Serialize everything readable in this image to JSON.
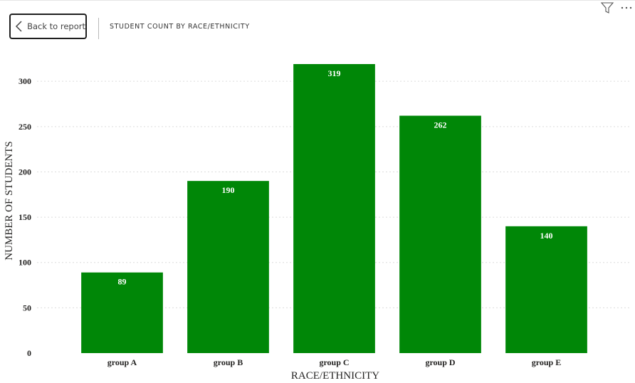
{
  "header": {
    "back_label": "Back to report",
    "visual_title": "STUDENT COUNT BY RACE/ETHNICITY"
  },
  "icons": {
    "back": "chevron-left-icon",
    "filter": "filter-icon",
    "more": "more-options-icon"
  },
  "colors": {
    "bar": "#008707",
    "grid": "#dcdcdc",
    "text": "#252423"
  },
  "chart_data": {
    "type": "bar",
    "categories": [
      "group A",
      "group B",
      "group C",
      "group D",
      "group E"
    ],
    "values": [
      89,
      190,
      319,
      262,
      140
    ],
    "xlabel": "RACE/ETHNICITY",
    "ylabel": "NUMBER OF STUDENTS",
    "ylim": [
      0,
      319
    ],
    "yticks": [
      0,
      50,
      100,
      150,
      200,
      250,
      300
    ],
    "grid": true,
    "data_labels": "inside-end"
  }
}
